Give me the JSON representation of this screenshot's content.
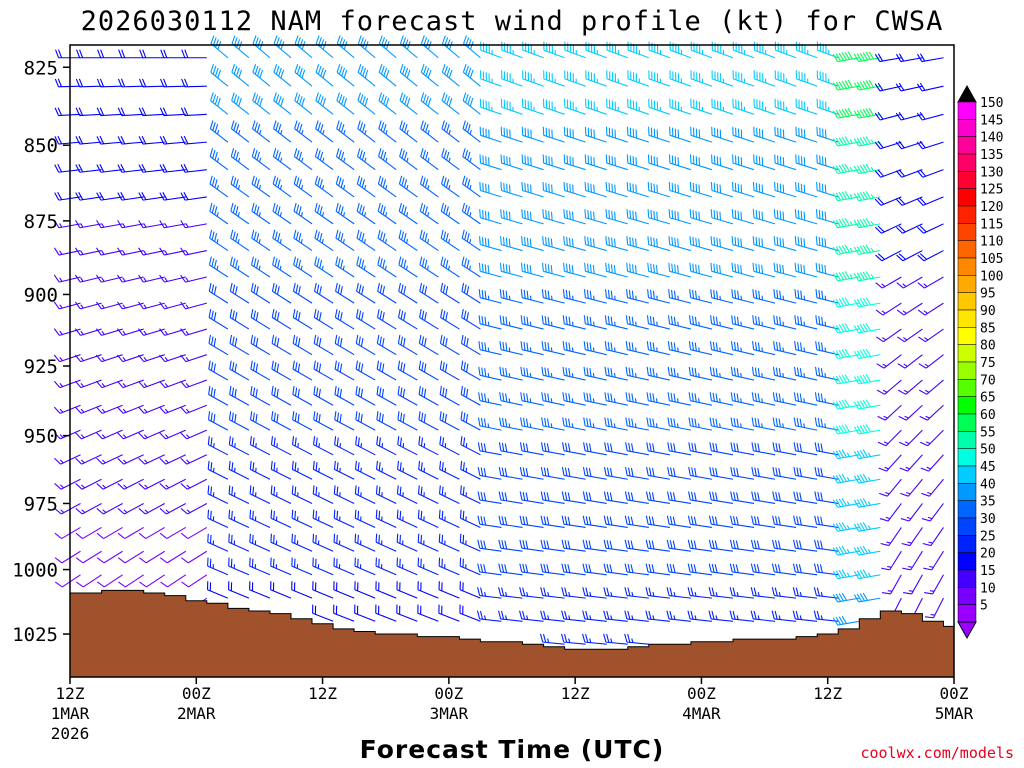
{
  "chart_data": {
    "type": "wind-profile",
    "title": "2026030112 NAM forecast wind profile (kt) for CWSA",
    "xlabel": "Forecast Time (UTC)",
    "ylabel": "",
    "credit": "coolwx.com/models",
    "ylim": [
      818,
      1042
    ],
    "y_ticks": [
      "825",
      "850",
      "875",
      "900",
      "925",
      "950",
      "975",
      "1000",
      "1025"
    ],
    "x_ticks": [
      {
        "hour": 0,
        "label": "12Z",
        "sub": "1MAR",
        "sub2": "2026"
      },
      {
        "hour": 12,
        "label": "00Z",
        "sub": "2MAR",
        "sub2": ""
      },
      {
        "hour": 24,
        "label": "12Z",
        "sub": "",
        "sub2": ""
      },
      {
        "hour": 36,
        "label": "00Z",
        "sub": "3MAR",
        "sub2": ""
      },
      {
        "hour": 48,
        "label": "12Z",
        "sub": "",
        "sub2": ""
      },
      {
        "hour": 60,
        "label": "00Z",
        "sub": "4MAR",
        "sub2": ""
      },
      {
        "hour": 72,
        "label": "12Z",
        "sub": "",
        "sub2": ""
      },
      {
        "hour": 84,
        "label": "00Z",
        "sub": "5MAR",
        "sub2": ""
      }
    ],
    "xlim_hours": [
      0,
      84
    ],
    "terrain_color": "#a0522d",
    "surface_pressure": [
      {
        "h": 0,
        "p": 1009
      },
      {
        "h": 2,
        "p": 1009
      },
      {
        "h": 4,
        "p": 1008
      },
      {
        "h": 6,
        "p": 1008
      },
      {
        "h": 8,
        "p": 1009
      },
      {
        "h": 10,
        "p": 1010
      },
      {
        "h": 12,
        "p": 1012
      },
      {
        "h": 14,
        "p": 1013
      },
      {
        "h": 16,
        "p": 1015
      },
      {
        "h": 18,
        "p": 1016
      },
      {
        "h": 20,
        "p": 1017
      },
      {
        "h": 22,
        "p": 1019
      },
      {
        "h": 24,
        "p": 1021
      },
      {
        "h": 26,
        "p": 1023
      },
      {
        "h": 28,
        "p": 1024
      },
      {
        "h": 30,
        "p": 1025
      },
      {
        "h": 32,
        "p": 1025
      },
      {
        "h": 34,
        "p": 1026
      },
      {
        "h": 36,
        "p": 1026
      },
      {
        "h": 38,
        "p": 1027
      },
      {
        "h": 40,
        "p": 1028
      },
      {
        "h": 42,
        "p": 1028
      },
      {
        "h": 44,
        "p": 1029
      },
      {
        "h": 46,
        "p": 1030
      },
      {
        "h": 48,
        "p": 1031
      },
      {
        "h": 50,
        "p": 1031
      },
      {
        "h": 52,
        "p": 1031
      },
      {
        "h": 54,
        "p": 1030
      },
      {
        "h": 56,
        "p": 1029
      },
      {
        "h": 58,
        "p": 1029
      },
      {
        "h": 60,
        "p": 1028
      },
      {
        "h": 62,
        "p": 1028
      },
      {
        "h": 64,
        "p": 1027
      },
      {
        "h": 66,
        "p": 1027
      },
      {
        "h": 68,
        "p": 1027
      },
      {
        "h": 70,
        "p": 1026
      },
      {
        "h": 72,
        "p": 1025
      },
      {
        "h": 74,
        "p": 1023
      },
      {
        "h": 76,
        "p": 1019
      },
      {
        "h": 78,
        "p": 1016
      },
      {
        "h": 80,
        "p": 1017
      },
      {
        "h": 82,
        "p": 1020
      },
      {
        "h": 84,
        "p": 1022
      }
    ],
    "colorbar": {
      "units": "kt",
      "labels": [
        "150",
        "145",
        "140",
        "135",
        "130",
        "125",
        "120",
        "115",
        "110",
        "105",
        "100",
        "95",
        "90",
        "85",
        "80",
        "75",
        "70",
        "65",
        "60",
        "55",
        "50",
        "45",
        "40",
        "35",
        "30",
        "25",
        "20",
        "15",
        "10",
        "5"
      ],
      "colors": [
        "#ff00ff",
        "#ff00cc",
        "#ff0099",
        "#ff0066",
        "#ff0033",
        "#ff0000",
        "#ff2200",
        "#ff4400",
        "#ff6600",
        "#ff8800",
        "#ffaa00",
        "#ffc800",
        "#ffe600",
        "#ffff00",
        "#ccff00",
        "#99ff00",
        "#55ff00",
        "#00ff00",
        "#00ff55",
        "#00ffaa",
        "#00ffe0",
        "#00ccff",
        "#0099ff",
        "#0066ff",
        "#0044ff",
        "#0022ff",
        "#0000ff",
        "#4400ff",
        "#7700ff",
        "#9900ff"
      ]
    },
    "wind_field_description_levels": [
      "825",
      "850",
      "875",
      "900",
      "925",
      "950",
      "975",
      "1000",
      "1025"
    ]
  }
}
